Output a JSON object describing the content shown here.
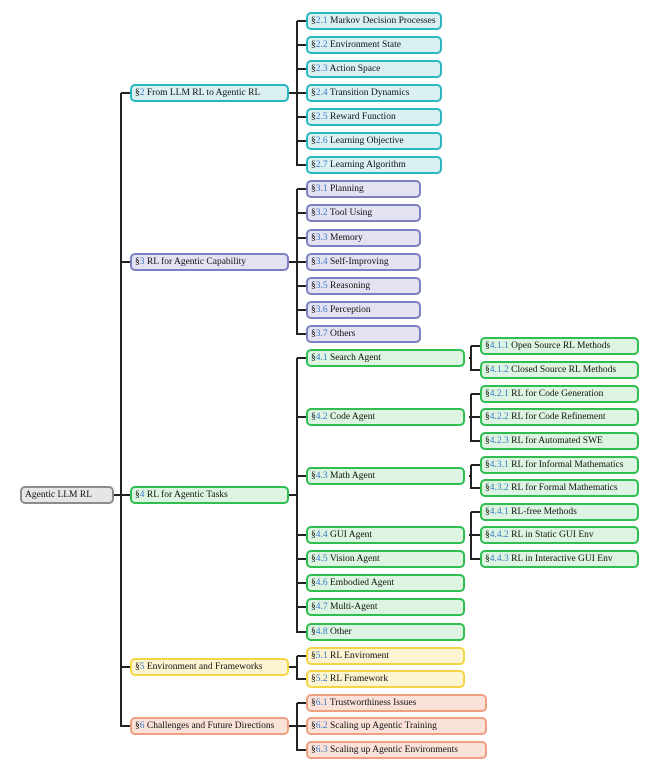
{
  "colors": {
    "root": {
      "border": "#8c8c8c",
      "fill": "#e6e6e6"
    },
    "sec2": {
      "border": "#2ab5bf",
      "fill": "#dbf0f2"
    },
    "sec3": {
      "border": "#7c80c2",
      "fill": "#e2e2f2"
    },
    "sec4": {
      "border": "#2fbe4f",
      "fill": "#dcf4e1"
    },
    "sec5": {
      "border": "#f3d547",
      "fill": "#fdf4d2"
    },
    "sec6": {
      "border": "#ee9f80",
      "fill": "#fbe2d8"
    },
    "section_number": "#3a7cc8"
  },
  "root": {
    "label": "Agentic LLM RL"
  },
  "sections": [
    {
      "prefix": "§",
      "num": "2",
      "label": " From LLM RL to Agentic RL",
      "children": [
        {
          "prefix": "§",
          "num": "2.1",
          "label": " Markov Decision Processes"
        },
        {
          "prefix": "§",
          "num": "2.2",
          "label": " Environment State"
        },
        {
          "prefix": "§",
          "num": "2.3",
          "label": " Action Space"
        },
        {
          "prefix": "§",
          "num": "2.4",
          "label": " Transition Dynamics"
        },
        {
          "prefix": "§",
          "num": "2.5",
          "label": " Reward Function"
        },
        {
          "prefix": "§",
          "num": "2.6",
          "label": " Learning Objective"
        },
        {
          "prefix": "§",
          "num": "2.7",
          "label": " Learning Algorithm"
        }
      ]
    },
    {
      "prefix": "§",
      "num": "3",
      "label": " RL for Agentic Capability",
      "children": [
        {
          "prefix": "§",
          "num": "3.1",
          "label": " Planning"
        },
        {
          "prefix": "§",
          "num": "3.2",
          "label": " Tool Using"
        },
        {
          "prefix": "§",
          "num": "3.3",
          "label": " Memory"
        },
        {
          "prefix": "§",
          "num": "3.4",
          "label": " Self-Improving"
        },
        {
          "prefix": "§",
          "num": "3.5",
          "label": " Reasoning"
        },
        {
          "prefix": "§",
          "num": "3.6",
          "label": " Perception"
        },
        {
          "prefix": "§",
          "num": "3.7",
          "label": " Others"
        }
      ]
    },
    {
      "prefix": "§",
      "num": "4",
      "label": " RL for Agentic Tasks",
      "children": [
        {
          "prefix": "§",
          "num": "4.1",
          "label": " Search Agent",
          "children": [
            {
              "prefix": "§",
              "num": "4.1.1",
              "label": " Open Source RL Methods"
            },
            {
              "prefix": "§",
              "num": "4.1.2",
              "label": " Closed Source RL Methods"
            }
          ]
        },
        {
          "prefix": "§",
          "num": "4.2",
          "label": " Code Agent",
          "children": [
            {
              "prefix": "§",
              "num": "4.2.1",
              "label": " RL for Code Generation"
            },
            {
              "prefix": "§",
              "num": "4.2.2",
              "label": " RL for Code Refinement"
            },
            {
              "prefix": "§",
              "num": "4.2.3",
              "label": " RL for Automated SWE"
            }
          ]
        },
        {
          "prefix": "§",
          "num": "4.3",
          "label": " Math Agent",
          "children": [
            {
              "prefix": "§",
              "num": "4.3.1",
              "label": " RL for Informal Mathematics"
            },
            {
              "prefix": "§",
              "num": "4.3.2",
              "label": " RL for Formal Mathematics"
            }
          ]
        },
        {
          "prefix": "§",
          "num": "4.4",
          "label": " GUI Agent",
          "children": [
            {
              "prefix": "§",
              "num": "4.4.1",
              "label": " RL-free Methods"
            },
            {
              "prefix": "§",
              "num": "4.4.2",
              "label": " RL in Static GUI Env"
            },
            {
              "prefix": "§",
              "num": "4.4.3",
              "label": " RL in Interactive GUI Env"
            }
          ]
        },
        {
          "prefix": "§",
          "num": "4.5",
          "label": " Vision Agent"
        },
        {
          "prefix": "§",
          "num": "4.6",
          "label": " Embodied Agent"
        },
        {
          "prefix": "§",
          "num": "4.7",
          "label": " Multi-Agent"
        },
        {
          "prefix": "§",
          "num": "4.8",
          "label": " Other"
        }
      ]
    },
    {
      "prefix": "§",
      "num": "5",
      "label": " Environment and Frameworks",
      "children": [
        {
          "prefix": "§",
          "num": "5.1",
          "label": " RL Enviroment"
        },
        {
          "prefix": "§",
          "num": "5.2",
          "label": " RL Framework"
        }
      ]
    },
    {
      "prefix": "§",
      "num": "6",
      "label": " Challenges and Future Directions",
      "children": [
        {
          "prefix": "§",
          "num": "6.1",
          "label": " Trustworthiness Issues"
        },
        {
          "prefix": "§",
          "num": "6.2",
          "label": " Scaling up Agentic Training"
        },
        {
          "prefix": "§",
          "num": "6.3",
          "label": " Scaling up Agentic Environments"
        }
      ]
    }
  ]
}
